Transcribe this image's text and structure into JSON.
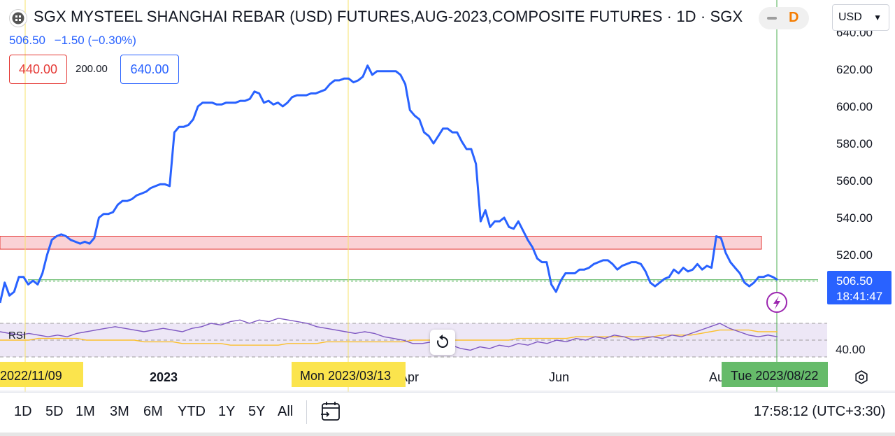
{
  "header": {
    "title": "SGX MYSTEEL SHANGHAI REBAR (USD) FUTURES,AUG-2023,COMPOSITE FUTURES · 1D · SGX",
    "price": "506.50",
    "change": "−1.50 (−0.30%)",
    "range_low": "440.00",
    "range_mid": "200.00",
    "range_high": "640.00",
    "mode_badge": "D",
    "currency": "USD",
    "currency_icon": "chevron-down-icon"
  },
  "chart_data": {
    "type": "line",
    "x_axis": {
      "labels": [
        "2023",
        "Apr",
        "Jun",
        "Aug"
      ],
      "crosshair_labels": [
        "2022/11/09",
        "Mon 2023/03/13",
        "Tue 2023/08/22"
      ]
    },
    "y_axis": {
      "ticks": [
        520,
        540,
        560,
        580,
        600,
        620,
        640
      ],
      "ylim": [
        495,
        650
      ]
    },
    "series": [
      {
        "values": [
          494,
          505,
          498,
          500,
          508,
          508,
          504,
          506,
          504,
          510,
          520,
          528,
          530,
          531,
          530,
          528,
          527,
          526,
          527,
          526,
          529,
          540,
          542,
          542,
          543,
          547,
          549,
          549,
          550,
          552,
          553,
          554,
          556,
          557,
          558,
          558,
          557,
          586,
          589,
          589,
          590,
          593,
          600,
          602,
          602,
          602,
          601,
          601,
          602,
          602,
          602,
          603,
          603,
          604,
          608,
          607,
          602,
          603,
          601,
          602,
          600,
          602,
          605,
          606,
          606,
          606,
          607,
          607,
          608,
          609,
          612,
          614,
          614,
          615,
          615,
          613,
          614,
          616,
          622,
          617,
          619,
          619,
          619,
          619,
          619,
          617,
          612,
          598,
          595,
          593,
          586,
          584,
          580,
          584,
          588,
          588,
          586,
          586,
          581,
          577,
          577,
          569,
          538,
          544,
          535,
          538,
          538,
          540,
          535,
          534,
          538,
          533,
          528,
          524,
          518,
          516,
          516,
          504,
          500,
          506,
          510,
          510,
          510,
          512,
          512,
          513,
          515,
          516,
          517,
          517,
          515,
          512,
          514,
          515,
          516,
          516,
          515,
          511,
          505,
          503,
          505,
          507,
          508,
          512,
          510,
          513,
          511,
          512,
          515,
          512,
          514,
          513,
          530,
          529,
          521,
          516,
          513,
          510,
          505,
          503,
          505,
          508,
          508,
          509,
          508,
          506.5
        ]
      }
    ],
    "last_price_label": "506.50",
    "last_time_label": "18:41:47",
    "resistance_zone": [
      523,
      530
    ],
    "support_line": 506.5,
    "rsi": {
      "label": "RSI",
      "tick": "40.00",
      "rsi_values": [
        55,
        54,
        53,
        54,
        53,
        52,
        53,
        52,
        54,
        55,
        56,
        57,
        58,
        57,
        56,
        55,
        56,
        57,
        56,
        55,
        57,
        58,
        60,
        59,
        61,
        62,
        60,
        62,
        61,
        63,
        62,
        61,
        60,
        58,
        57,
        56,
        55,
        54,
        55,
        54,
        52,
        51,
        50,
        48,
        48,
        49,
        48,
        47,
        45,
        44,
        46,
        45,
        47,
        46,
        48,
        47,
        49,
        48,
        50,
        49,
        51,
        50,
        52,
        51,
        53,
        52,
        50,
        51,
        52,
        51,
        53,
        52,
        54,
        56,
        58,
        60,
        57,
        55,
        53,
        52,
        53,
        52
      ],
      "ma_values": [
        50,
        50,
        50,
        50,
        51,
        51,
        51,
        51,
        51,
        50,
        50,
        50,
        50,
        50,
        50,
        49,
        49,
        49,
        49,
        48,
        48,
        48,
        48,
        48,
        47,
        47,
        47,
        47,
        47,
        47,
        48,
        48,
        48,
        48,
        49,
        49,
        49,
        49,
        49,
        49,
        49,
        49,
        49,
        50,
        50,
        50,
        50,
        50,
        50,
        50,
        50,
        50,
        50,
        50,
        51,
        51,
        51,
        51,
        51,
        51,
        52,
        52,
        52,
        52,
        52,
        52,
        52,
        52,
        52,
        53,
        53,
        53,
        53,
        54,
        55,
        56,
        56,
        56,
        56,
        55,
        55,
        55
      ]
    }
  },
  "colors": {
    "line": "#2962ff",
    "zone_fill": "#fad2d6",
    "zone_border": "#e53935",
    "support": "#4caf50",
    "rsi_line": "#7e57c2",
    "rsi_ma": "#fbc02d",
    "rsi_bg": "#ede7f6",
    "crosshair_v": "#f7e36b",
    "crosshair_last": "#4caf50"
  },
  "timeframes": [
    "1D",
    "5D",
    "1M",
    "3M",
    "6M",
    "YTD",
    "1Y",
    "5Y",
    "All"
  ],
  "footer": {
    "clock": "17:58:12 (UTC+3:30)"
  },
  "icons": {
    "calendar": "calendar-range-icon",
    "settings": "settings-icon",
    "reset": "reset-zoom-icon",
    "alert": "lightning-icon"
  }
}
